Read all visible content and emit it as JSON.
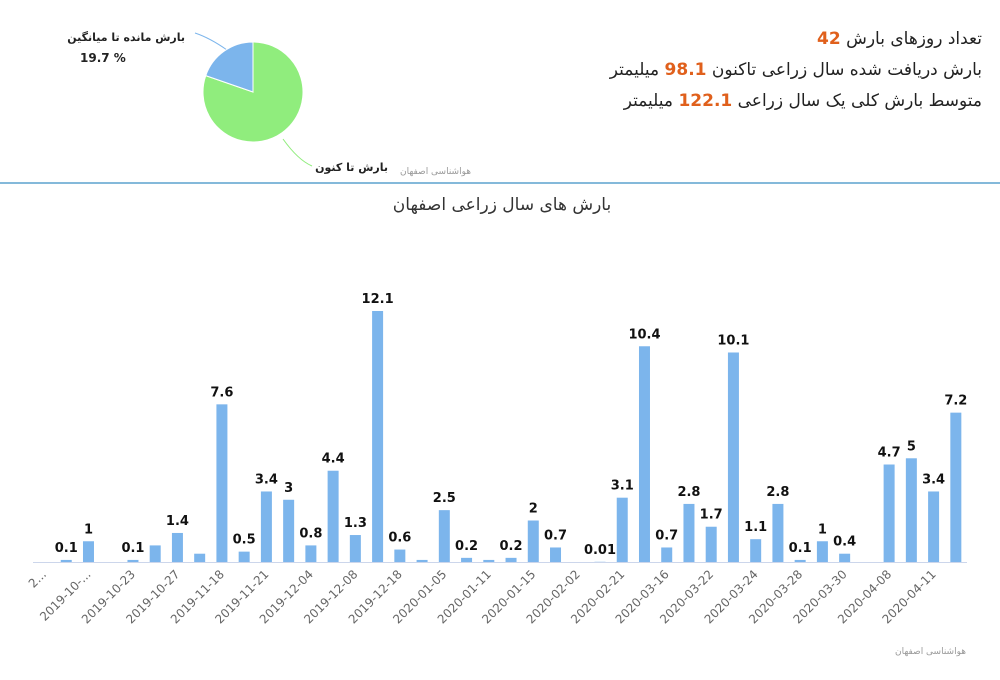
{
  "stats": [
    {
      "prefix": "تعداد روزهای بارش",
      "value": 42
    },
    {
      "prefix": "بارش دریافت شده سال زراعی تاکنون",
      "value": 98.1,
      "suffix": "میلیمتر"
    },
    {
      "prefix": "متوسط بارش کلی یک سال زراعی",
      "value": 122.1,
      "suffix": "میلیمتر"
    }
  ],
  "chart_data": [
    {
      "type": "pie",
      "categories": [
        "بارش تا کنون",
        "بارش مانده تا میانگین"
      ],
      "values": [
        80.3,
        19.7
      ],
      "value_labels": [
        null,
        "19.7 %"
      ],
      "colors": [
        "#90ed7d",
        "#7cb5ec"
      ],
      "credit": "هواشناسی اصفهان"
    },
    {
      "type": "bar",
      "title": "بارش های سال زراعی اصفهان",
      "categories": [
        "2...",
        null,
        "2019-10-...",
        null,
        "2019-10-23",
        null,
        "2019-10-27",
        null,
        "2019-11-18",
        null,
        "2019-11-21",
        null,
        "2019-12-04",
        null,
        "2019-12-08",
        null,
        "2019-12-18",
        null,
        "2020-01-05",
        null,
        "2020-01-11",
        null,
        "2020-01-15",
        null,
        "2020-02-02",
        null,
        "2020-02-21",
        null,
        "2020-03-16",
        null,
        "2020-03-22",
        null,
        "2020-03-24",
        null,
        "2020-03-28",
        null,
        "2020-03-30",
        null,
        "2020-04-08",
        null,
        "2020-04-11",
        null
      ],
      "values": [
        0,
        0.1,
        1,
        0,
        0.1,
        0.8,
        1.4,
        0.4,
        7.6,
        0.5,
        3.4,
        3,
        0.8,
        4.4,
        1.3,
        12.1,
        0.6,
        0.1,
        2.5,
        0.2,
        0.1,
        0.2,
        2,
        0.7,
        0,
        0.01,
        3.1,
        10.4,
        0.7,
        2.8,
        1.7,
        10.1,
        1.1,
        2.8,
        0.1,
        1,
        0.4,
        0,
        4.7,
        5,
        3.4,
        7.2
      ],
      "value_labels": [
        null,
        "0.1",
        "1",
        null,
        "0.1",
        null,
        "1.4",
        null,
        "7.6",
        "0.5",
        "3.4",
        "3",
        "0.8",
        "4.4",
        "1.3",
        "12.1",
        "0.6",
        null,
        "2.5",
        "0.2",
        null,
        "0.2",
        "2",
        "0.7",
        null,
        "0.01",
        "3.1",
        "10.4",
        "0.7",
        "2.8",
        "1.7",
        "10.1",
        "1.1",
        "2.8",
        "0.1",
        "1",
        "0.4",
        null,
        "4.7",
        "5",
        "3.4",
        "7.2"
      ],
      "color": "#7cb5ec",
      "ylim": [
        0,
        12.5
      ],
      "credit": "هواشناسی اصفهان"
    }
  ]
}
